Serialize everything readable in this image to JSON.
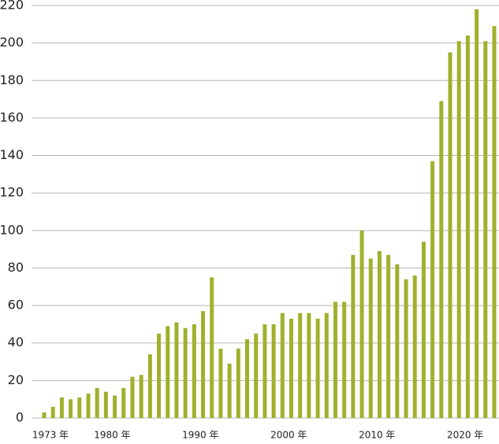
{
  "chart_data": {
    "type": "bar",
    "categories": [
      "1973 年",
      null,
      null,
      null,
      null,
      null,
      null,
      "1980 年",
      null,
      null,
      null,
      null,
      null,
      null,
      null,
      null,
      null,
      "1990 年",
      null,
      null,
      null,
      null,
      null,
      null,
      null,
      null,
      null,
      "2000 年",
      null,
      null,
      null,
      null,
      null,
      null,
      null,
      null,
      null,
      "2010 年",
      null,
      null,
      null,
      null,
      null,
      null,
      null,
      null,
      null,
      "2020 年",
      null,
      null,
      null,
      null
    ],
    "values": [
      3,
      6,
      11,
      10,
      11,
      13,
      16,
      14,
      12,
      16,
      22,
      23,
      34,
      45,
      49,
      51,
      48,
      50,
      57,
      75,
      37,
      29,
      37,
      42,
      45,
      50,
      50,
      56,
      53,
      56,
      56,
      53,
      56,
      62,
      62,
      87,
      100,
      85,
      89,
      87,
      82,
      74,
      76,
      94,
      137,
      169,
      195,
      201,
      204,
      218,
      201,
      209
    ],
    "color": "#a0b02c",
    "ylim": [
      0,
      220
    ],
    "yticks": [
      0,
      20,
      40,
      60,
      80,
      100,
      120,
      140,
      160,
      180,
      200,
      220
    ],
    "grid": true
  }
}
